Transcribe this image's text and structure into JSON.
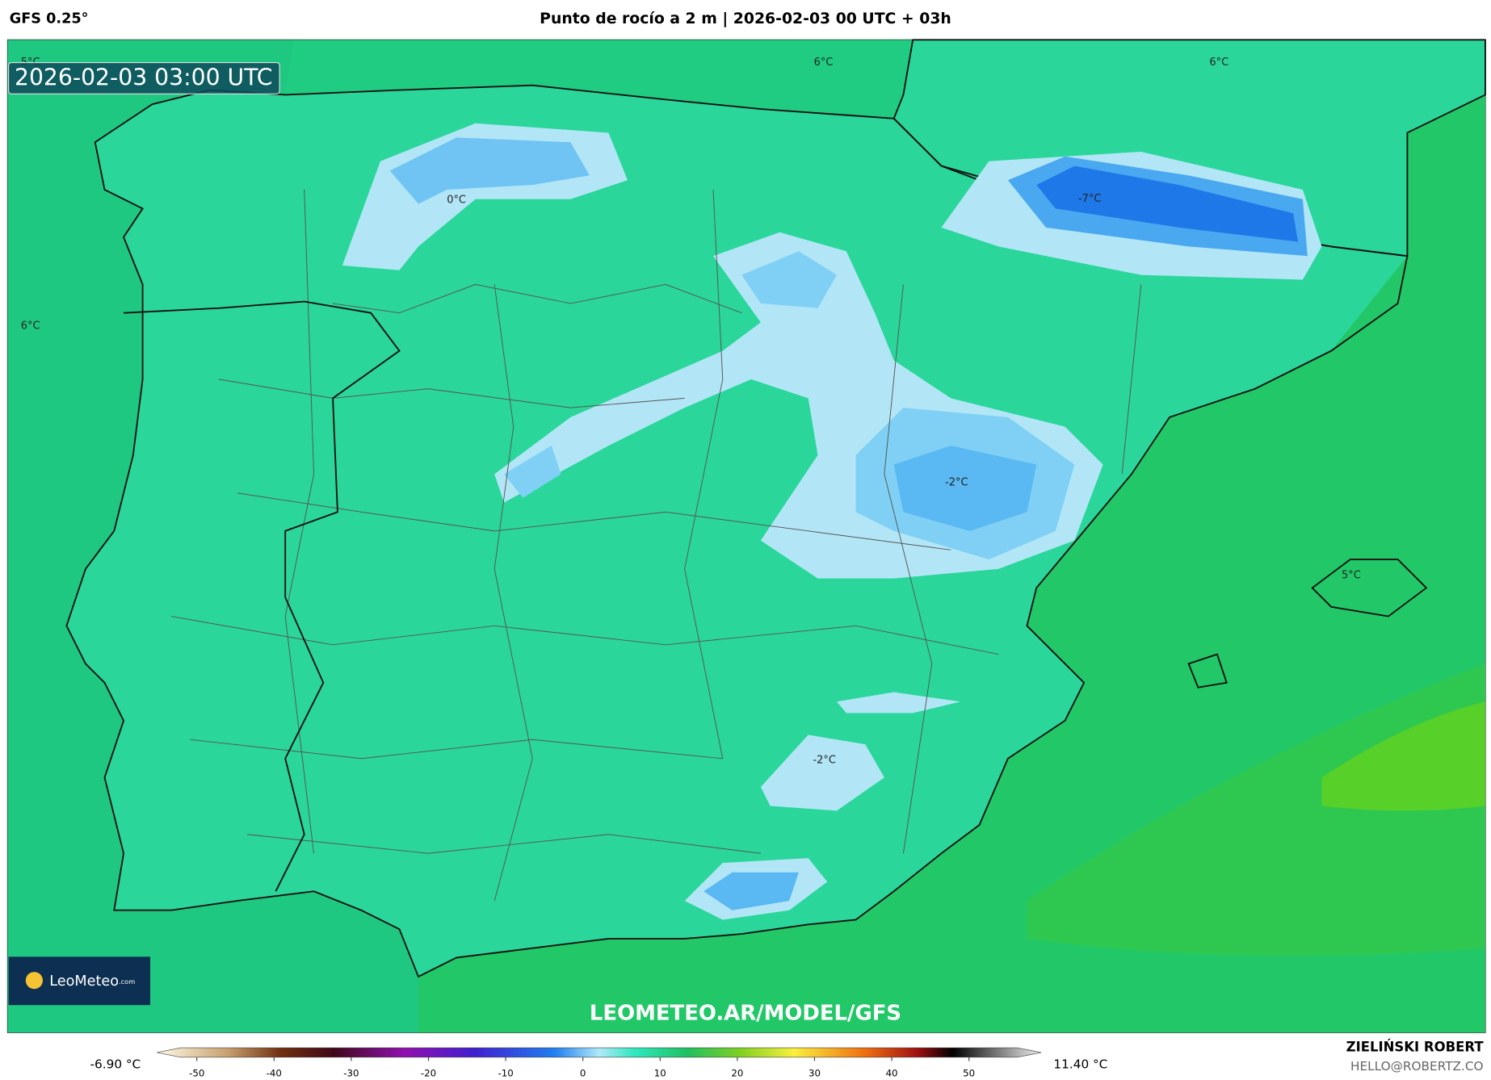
{
  "header": {
    "model": "GFS 0.25°",
    "title": "Punto de rocío a 2 m | 2026-02-03 00 UTC + 03h"
  },
  "map": {
    "timestamp": "2026-02-03 03:00 UTC",
    "contour_labels": [
      "6°C",
      "6°C",
      "6°C",
      "5°C",
      "0°C",
      "-7°C",
      "-2°C",
      "-2°C",
      "5°C"
    ],
    "watermark": "LEOMETEO.AR/MODEL/GFS",
    "logo": {
      "name": "LeoMeteo",
      "suffix": ".com"
    }
  },
  "colorbar": {
    "min_label": "-6.90 °C",
    "max_label": "11.40 °C",
    "ticks": [
      -50,
      -40,
      -30,
      -20,
      -10,
      0,
      10,
      20,
      30,
      40,
      50
    ]
  },
  "credit": {
    "author": "ZIELIŃSKI ROBERT",
    "email": "HELLO@ROBERTZ.CO"
  }
}
